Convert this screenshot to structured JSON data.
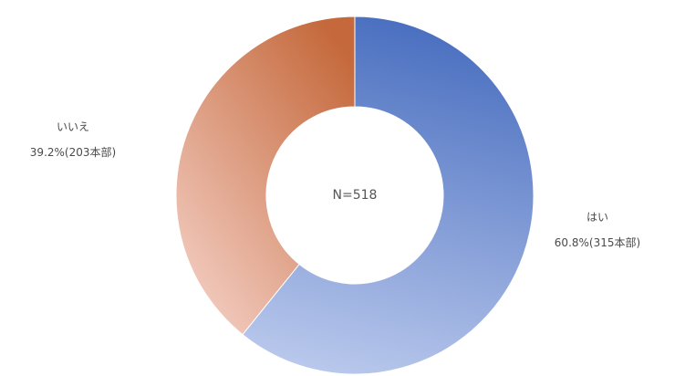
{
  "chart_data": {
    "type": "pie",
    "variant": "donut",
    "center_label": "N=518",
    "slices": [
      {
        "label": "はい",
        "value": 60.8,
        "value_text": "60.8%(315本部)",
        "color_start": "#4a6fc0",
        "color_end": "#b9c8ec"
      },
      {
        "label": "いいえ",
        "value": 39.2,
        "value_text": "39.2%(203本部)",
        "color_start": "#f2cbbf",
        "color_end": "#c5693c"
      }
    ],
    "legend": "none",
    "labels_outside": true
  }
}
